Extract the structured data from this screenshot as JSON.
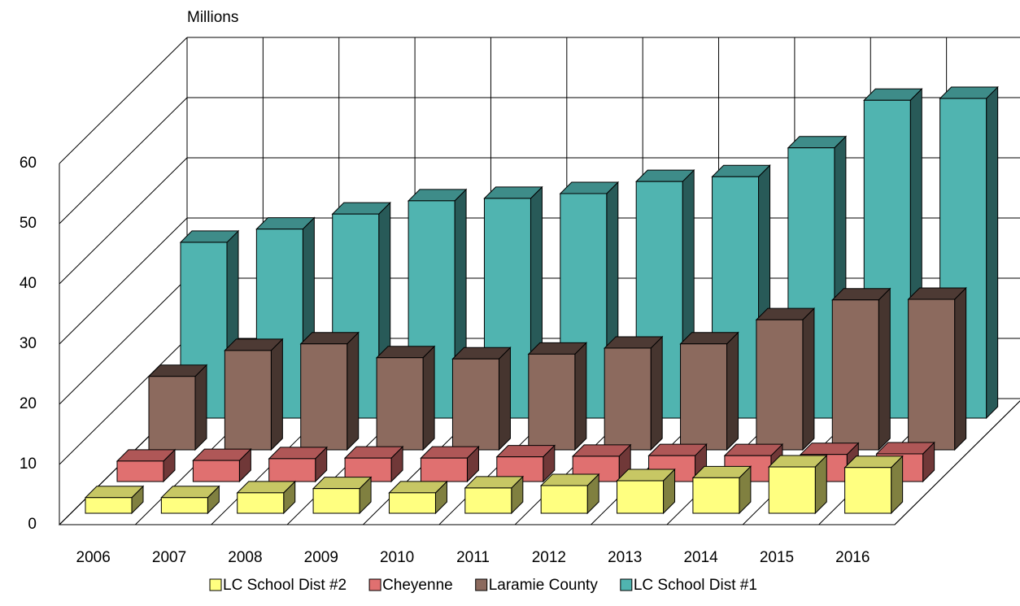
{
  "chart_data": {
    "type": "bar3d",
    "title": "Millions",
    "categories": [
      "2006",
      "2007",
      "2008",
      "2009",
      "2010",
      "2011",
      "2012",
      "2013",
      "2014",
      "2015",
      "2016"
    ],
    "series": [
      {
        "name": "LC School Dist #2",
        "color": "#ffff80",
        "values": [
          2.6,
          2.6,
          3.4,
          4.1,
          3.4,
          4.2,
          4.6,
          5.4,
          5.9,
          7.7,
          7.6
        ]
      },
      {
        "name": "Cheyenne",
        "color": "#e07070",
        "values": [
          3.4,
          3.5,
          3.8,
          3.9,
          3.9,
          4.1,
          4.2,
          4.3,
          4.3,
          4.5,
          4.6
        ]
      },
      {
        "name": "Laramie County",
        "color": "#8c6a5e",
        "values": [
          12.2,
          16.5,
          17.6,
          15.3,
          15.1,
          15.9,
          16.9,
          17.6,
          21.6,
          24.9,
          25.0
        ]
      },
      {
        "name": "LC School Dist #1",
        "color": "#50b4b0",
        "values": [
          29.2,
          31.4,
          33.9,
          36.1,
          36.5,
          37.3,
          39.3,
          40.1,
          44.9,
          52.8,
          53.1
        ]
      }
    ],
    "ylim": [
      0,
      60
    ],
    "yticks": [
      0,
      10,
      20,
      30,
      40,
      50,
      60
    ],
    "grid": true
  }
}
